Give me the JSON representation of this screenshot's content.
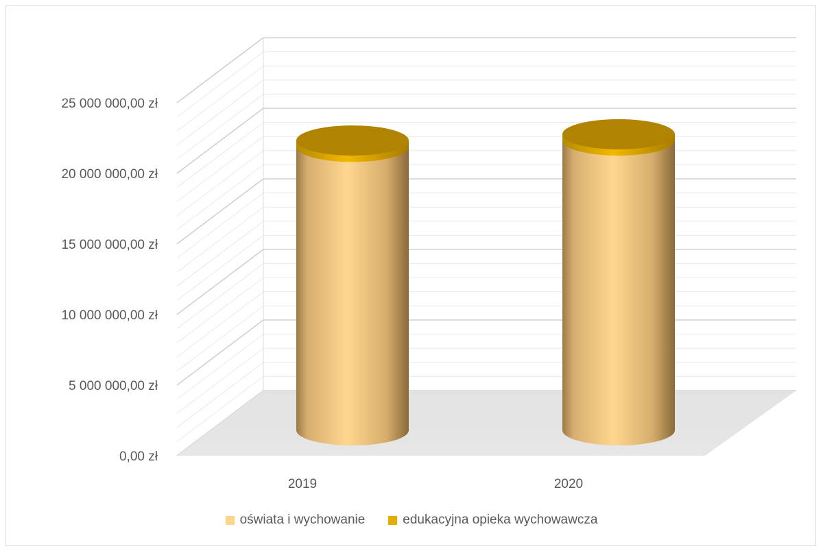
{
  "chart_data": {
    "type": "bar",
    "style": "3d-cylinder-stacked",
    "categories": [
      "2019",
      "2020"
    ],
    "series": [
      {
        "name": "oświata i wychowanie",
        "values": [
          20300000,
          20750000
        ],
        "color": "#FFD58A"
      },
      {
        "name": "edukacyjna opieka wychowawcza",
        "values": [
          450000,
          450000
        ],
        "color": "#E6AC00"
      }
    ],
    "y_ticks": [
      "0,00 zł",
      "5 000 000,00 zł",
      "10 000 000,00 zł",
      "15 000 000,00 zł",
      "20 000 000,00 zł",
      "25 000 000,00 zł"
    ],
    "ylim": [
      0,
      25000000
    ],
    "grid": true,
    "legend_position": "bottom"
  }
}
